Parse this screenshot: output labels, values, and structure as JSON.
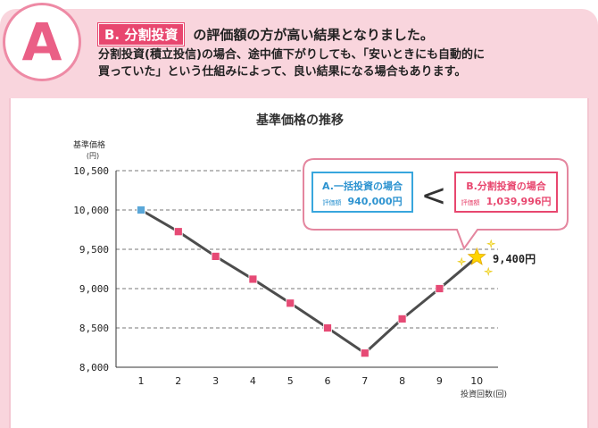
{
  "header": {
    "letter": "A",
    "tag": "B. 分割投資",
    "headline_rest": "の評価額の方が高い結果となりました。",
    "desc_line1": "分割投資(積立投信)の場合、途中値下がりしても、「安いときにも自動的に",
    "desc_line2": "買っていた」という仕組みによって、良い結果になる場合もあります。"
  },
  "callout": {
    "left_title": "A.一括投資の場合",
    "left_label": "評価額",
    "left_value": "940,000円",
    "compare": "<",
    "right_title": "B.分割投資の場合",
    "right_label": "評価額",
    "right_value": "1,039,996円"
  },
  "colors": {
    "accent": "#e8476f",
    "header_bg": "#f9d5dd",
    "line": "#4d4d4d",
    "marker": "#e64a75",
    "first_marker": "#5aa7d8",
    "left_box_border": "#38a6dd",
    "left_box_text": "#2d93d0",
    "star": "#ffd400"
  },
  "chart_data": {
    "type": "line",
    "title": "基準価格の推移",
    "ylabel": "基準価格",
    "ylabel_unit": "(円)",
    "xlabel": "投資回数(回)",
    "x": [
      1,
      2,
      3,
      4,
      5,
      6,
      7,
      8,
      9,
      10
    ],
    "y": [
      10000,
      9725,
      9410,
      9120,
      8815,
      8500,
      8180,
      8615,
      9000,
      9400
    ],
    "ylim": [
      8000,
      10500
    ],
    "yticks": [
      8000,
      8500,
      9000,
      9500,
      10000,
      10500
    ],
    "ytick_labels": [
      "8,000",
      "8,500",
      "9,000",
      "9,500",
      "10,000",
      "10,500"
    ],
    "xtick_labels": [
      "1",
      "2",
      "3",
      "4",
      "5",
      "6",
      "7",
      "8",
      "9",
      "10"
    ],
    "grid": true,
    "end_label": "9,400円"
  }
}
